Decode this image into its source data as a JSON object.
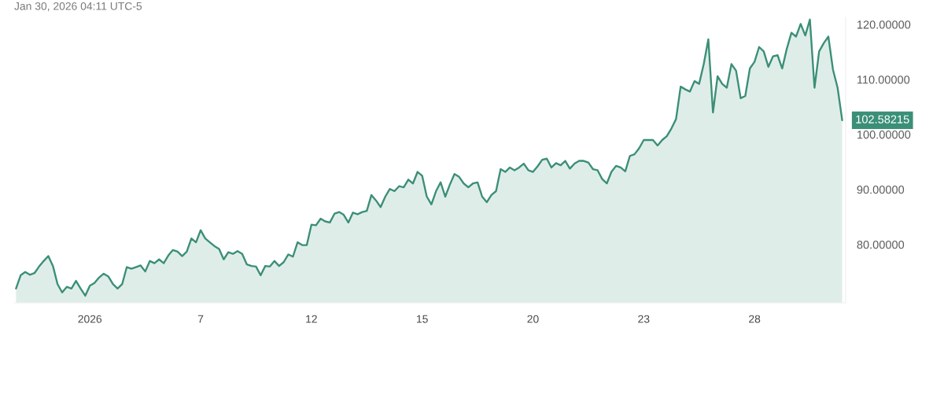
{
  "chart_data": {
    "type": "area",
    "categories": [
      null,
      null,
      null,
      null,
      null,
      null,
      null,
      null,
      null,
      null,
      null,
      null,
      null,
      null,
      null,
      null,
      "2026",
      null,
      null,
      null,
      null,
      null,
      null,
      null,
      null,
      null,
      null,
      null,
      null,
      null,
      null,
      null,
      null,
      null,
      null,
      null,
      null,
      null,
      null,
      null,
      "7",
      null,
      null,
      null,
      null,
      null,
      null,
      null,
      null,
      null,
      null,
      null,
      null,
      null,
      null,
      null,
      null,
      null,
      null,
      null,
      null,
      null,
      null,
      null,
      "12",
      null,
      null,
      null,
      null,
      null,
      null,
      null,
      null,
      null,
      null,
      null,
      null,
      null,
      null,
      null,
      null,
      null,
      null,
      null,
      null,
      null,
      null,
      null,
      "15",
      null,
      null,
      null,
      null,
      null,
      null,
      null,
      null,
      null,
      null,
      null,
      null,
      null,
      null,
      null,
      null,
      null,
      null,
      null,
      null,
      null,
      null,
      null,
      "20",
      null,
      null,
      null,
      null,
      null,
      null,
      null,
      null,
      null,
      null,
      null,
      null,
      null,
      null,
      null,
      null,
      null,
      null,
      null,
      null,
      null,
      null,
      null,
      "23",
      null,
      null,
      null,
      null,
      null,
      null,
      null,
      null,
      null,
      null,
      null,
      null,
      null,
      null,
      null,
      null,
      null,
      null,
      null,
      null,
      null,
      null,
      null,
      "28",
      null,
      null,
      null,
      null,
      null,
      null,
      null,
      null,
      null,
      null,
      null,
      null,
      null,
      null,
      null,
      null,
      null,
      null,
      null
    ],
    "series": [
      {
        "color": "#3b8f77",
        "values": [
          72.0,
          74.4,
          75.0,
          74.5,
          74.8,
          76.0,
          77.0,
          77.9,
          76.1,
          72.8,
          71.3,
          72.3,
          72.0,
          73.4,
          72.0,
          70.7,
          72.5,
          73.0,
          74.0,
          74.7,
          74.2,
          72.8,
          72.0,
          72.8,
          75.9,
          75.6,
          75.9,
          76.2,
          75.1,
          77.0,
          76.6,
          77.3,
          76.6,
          78.0,
          79.0,
          78.7,
          77.9,
          78.7,
          81.1,
          80.4,
          82.6,
          81.1,
          80.4,
          79.7,
          79.2,
          77.3,
          78.6,
          78.3,
          78.8,
          78.3,
          76.4,
          76.1,
          76.0,
          74.4,
          76.1,
          76.0,
          77.0,
          76.1,
          76.8,
          78.2,
          77.8,
          80.4,
          79.9,
          79.9,
          83.6,
          83.5,
          84.7,
          84.2,
          84.0,
          85.6,
          85.9,
          85.4,
          84.0,
          85.8,
          85.5,
          85.9,
          86.1,
          89.0,
          88.0,
          86.8,
          88.7,
          90.1,
          89.7,
          90.6,
          90.4,
          91.8,
          91.1,
          93.2,
          92.5,
          88.7,
          87.3,
          89.7,
          91.3,
          88.7,
          90.9,
          92.8,
          92.3,
          91.1,
          90.4,
          91.1,
          91.3,
          88.7,
          87.7,
          89.0,
          89.7,
          93.7,
          93.2,
          94.0,
          93.5,
          94.0,
          94.7,
          93.5,
          93.2,
          94.2,
          95.4,
          95.6,
          94.0,
          94.8,
          94.4,
          95.2,
          93.8,
          94.7,
          95.2,
          95.2,
          94.9,
          93.7,
          93.5,
          91.9,
          91.1,
          93.2,
          94.3,
          94.0,
          93.3,
          96.1,
          96.4,
          97.5,
          99.0,
          99.0,
          99.0,
          98.0,
          99.0,
          99.7,
          101.1,
          102.8,
          108.7,
          108.2,
          107.8,
          109.7,
          109.2,
          112.8,
          117.3,
          104.0,
          110.6,
          109.2,
          108.5,
          112.8,
          111.6,
          106.6,
          107.0,
          112.0,
          113.2,
          115.9,
          115.1,
          112.3,
          114.2,
          114.4,
          112.0,
          115.6,
          118.5,
          117.8,
          120.1,
          118.0,
          120.9,
          108.5,
          115.1,
          116.6,
          117.8,
          111.8,
          108.5,
          102.58215
        ],
        "value_labels": [
          null,
          null,
          null,
          null,
          null,
          null,
          null,
          null,
          null,
          null,
          null,
          null,
          null,
          null,
          null,
          null,
          null,
          null,
          null,
          null,
          null,
          null,
          null,
          null,
          null,
          null,
          null,
          null,
          null,
          null,
          null,
          null,
          null,
          null,
          null,
          null,
          null,
          null,
          null,
          null,
          null,
          null,
          null,
          null,
          null,
          null,
          null,
          null,
          null,
          null,
          null,
          null,
          null,
          null,
          null,
          null,
          null,
          null,
          null,
          null,
          null,
          null,
          null,
          null,
          null,
          null,
          null,
          null,
          null,
          null,
          null,
          null,
          null,
          null,
          null,
          null,
          null,
          null,
          null,
          null,
          null,
          null,
          null,
          null,
          null,
          null,
          null,
          null,
          null,
          null,
          null,
          null,
          null,
          null,
          null,
          null,
          null,
          null,
          null,
          null,
          null,
          null,
          null,
          null,
          null,
          null,
          null,
          null,
          null,
          null,
          null,
          null,
          null,
          null,
          null,
          null,
          null,
          null,
          null,
          null,
          null,
          null,
          null,
          null,
          null,
          null,
          null,
          null,
          null,
          null,
          null,
          null,
          null,
          null,
          null,
          null,
          null,
          null,
          null,
          null,
          null,
          null,
          null,
          null,
          null,
          null,
          null,
          null,
          null,
          null,
          null,
          null,
          null,
          null,
          null,
          null,
          null,
          null,
          null,
          null,
          null,
          null,
          null,
          null,
          null,
          null,
          null,
          null,
          null,
          null,
          null,
          null,
          null,
          null,
          null,
          null,
          null,
          null,
          null,
          "102.58215"
        ]
      }
    ],
    "ylim": [
      69.4,
      121.3
    ],
    "yticks": [
      {
        "value": 80,
        "label": "80.00000"
      },
      {
        "value": 90,
        "label": "90.00000"
      },
      {
        "value": 100,
        "label": "100.00000"
      },
      {
        "value": 110,
        "label": "110.00000"
      },
      {
        "value": 120,
        "label": "120.00000"
      }
    ],
    "annotations": [
      "Jan 30, 2026 04:11 UTC-5"
    ],
    "grid": false
  }
}
